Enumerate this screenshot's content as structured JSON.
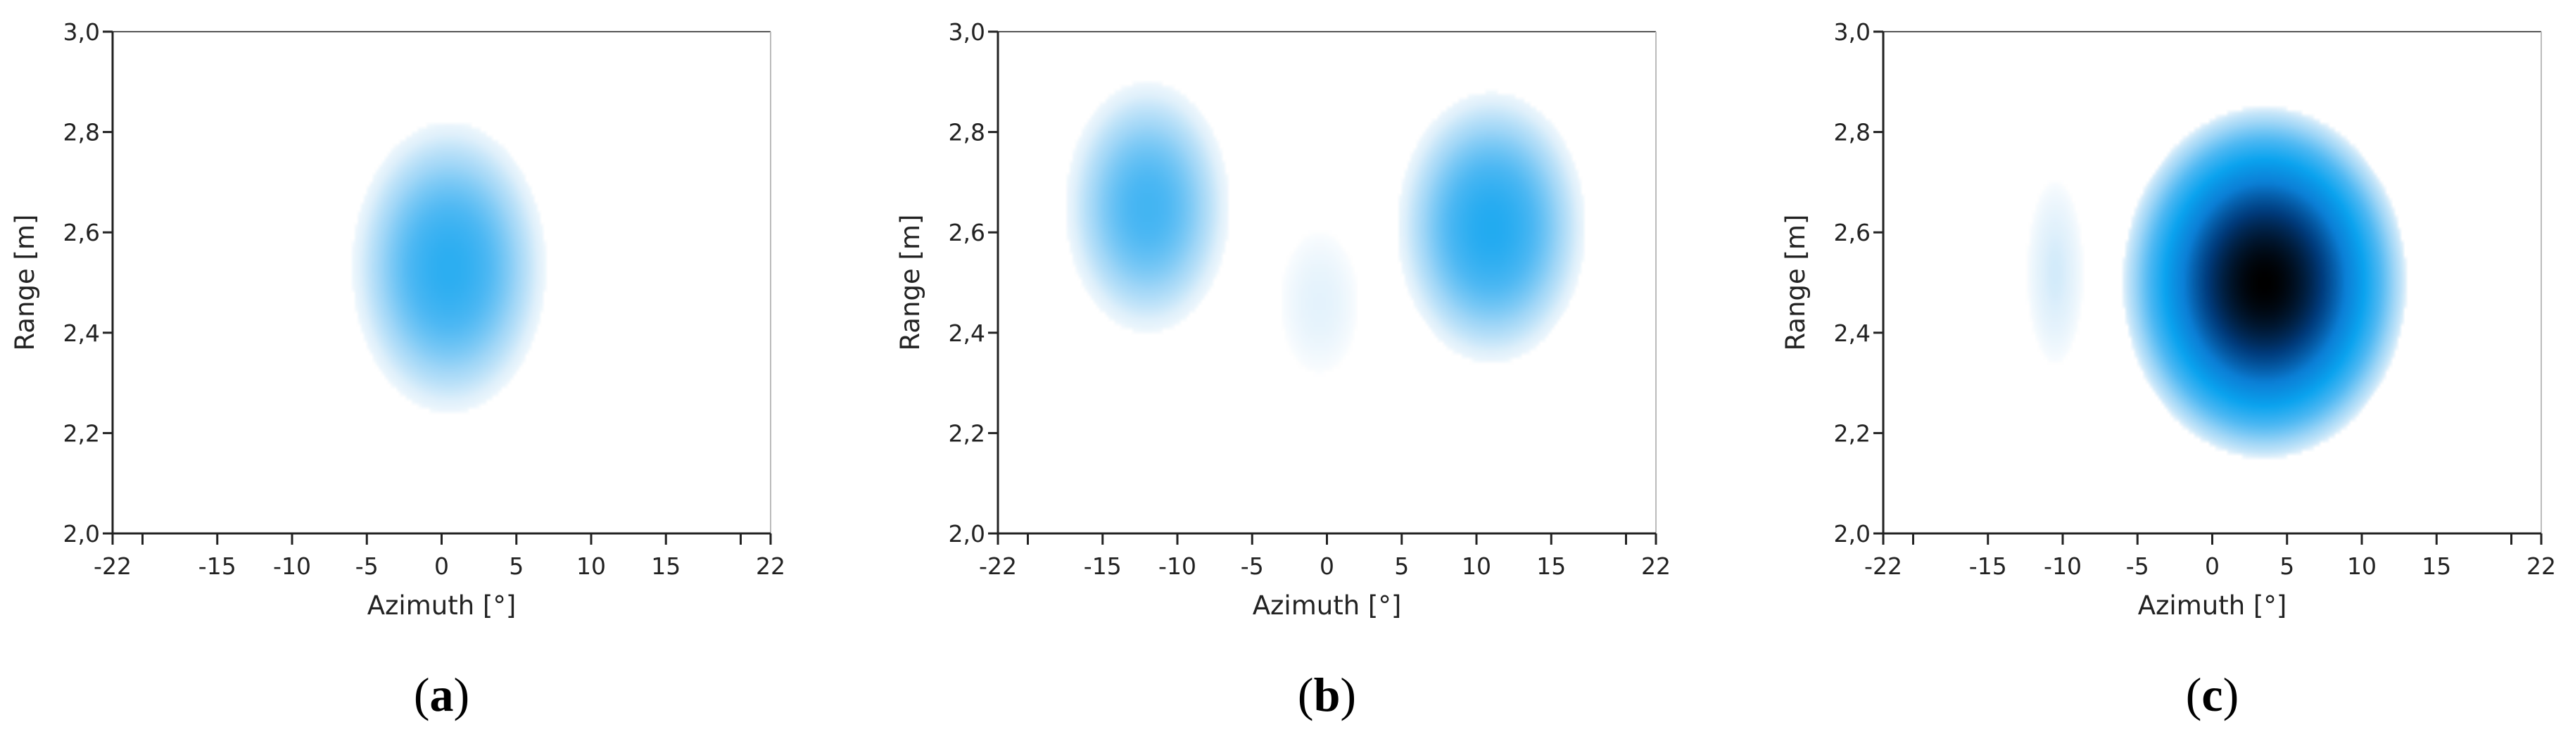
{
  "chart_data": [
    {
      "type": "heatmap",
      "caption": {
        "open": "(",
        "letter": "a",
        "close": ")"
      },
      "xlabel": "Azimuth [°]",
      "ylabel": "Range [m]",
      "xlim": [
        -22,
        22
      ],
      "ylim": [
        2.0,
        3.0
      ],
      "x_tick_labels": [
        {
          "value": -22,
          "label": "-22"
        },
        {
          "value": -15,
          "label": "-15"
        },
        {
          "value": -10,
          "label": "-10"
        },
        {
          "value": -5,
          "label": "-5"
        },
        {
          "value": 0,
          "label": "0"
        },
        {
          "value": 5,
          "label": "5"
        },
        {
          "value": 10,
          "label": "10"
        },
        {
          "value": 15,
          "label": "15"
        },
        {
          "value": 22,
          "label": "22"
        }
      ],
      "x_minor_ticks": [
        -20,
        20
      ],
      "y_tick_labels": [
        {
          "value": 2.0,
          "label": "2,0"
        },
        {
          "value": 2.2,
          "label": "2,2"
        },
        {
          "value": 2.4,
          "label": "2,4"
        },
        {
          "value": 2.6,
          "label": "2,6"
        },
        {
          "value": 2.8,
          "label": "2,8"
        },
        {
          "value": 3.0,
          "label": "3,0"
        }
      ],
      "colormap": [
        "#ffffff",
        "#dff0fb",
        "#9fd6f7",
        "#4db8f3",
        "#0aa3ef",
        "#0b7fd6",
        "#003a7a",
        "#000000"
      ],
      "grid": false,
      "blobs": [
        {
          "azimuth": 0.5,
          "range": 2.53,
          "azimuth_halfwidth": 6.5,
          "range_halfwidth": 0.29,
          "intensity": 0.5
        }
      ]
    },
    {
      "type": "heatmap",
      "caption": {
        "open": "(",
        "letter": "b",
        "close": ")"
      },
      "xlabel": "Azimuth [°]",
      "ylabel": "Range [m]",
      "xlim": [
        -22,
        22
      ],
      "ylim": [
        2.0,
        3.0
      ],
      "x_tick_labels": [
        {
          "value": -22,
          "label": "-22"
        },
        {
          "value": -15,
          "label": "-15"
        },
        {
          "value": -10,
          "label": "-10"
        },
        {
          "value": -5,
          "label": "-5"
        },
        {
          "value": 0,
          "label": "0"
        },
        {
          "value": 5,
          "label": "5"
        },
        {
          "value": 10,
          "label": "10"
        },
        {
          "value": 15,
          "label": "15"
        },
        {
          "value": 22,
          "label": "22"
        }
      ],
      "x_minor_ticks": [
        -20,
        20
      ],
      "y_tick_labels": [
        {
          "value": 2.0,
          "label": "2,0"
        },
        {
          "value": 2.2,
          "label": "2,2"
        },
        {
          "value": 2.4,
          "label": "2,4"
        },
        {
          "value": 2.6,
          "label": "2,6"
        },
        {
          "value": 2.8,
          "label": "2,8"
        },
        {
          "value": 3.0,
          "label": "3,0"
        }
      ],
      "colormap": [
        "#ffffff",
        "#dff0fb",
        "#9fd6f7",
        "#4db8f3",
        "#0aa3ef",
        "#0b7fd6",
        "#003a7a",
        "#000000"
      ],
      "grid": false,
      "blobs": [
        {
          "azimuth": -12,
          "range": 2.65,
          "azimuth_halfwidth": 5.5,
          "range_halfwidth": 0.25,
          "intensity": 0.45
        },
        {
          "azimuth": -0.5,
          "range": 2.46,
          "azimuth_halfwidth": 2.6,
          "range_halfwidth": 0.14,
          "intensity": 0.12
        },
        {
          "azimuth": 11,
          "range": 2.61,
          "azimuth_halfwidth": 6.3,
          "range_halfwidth": 0.27,
          "intensity": 0.52
        }
      ]
    },
    {
      "type": "heatmap",
      "caption": {
        "open": "(",
        "letter": "c",
        "close": ")"
      },
      "xlabel": "Azimuth [°]",
      "ylabel": "Range [m]",
      "xlim": [
        -22,
        22
      ],
      "ylim": [
        2.0,
        3.0
      ],
      "x_tick_labels": [
        {
          "value": -22,
          "label": "-22"
        },
        {
          "value": -15,
          "label": "-15"
        },
        {
          "value": -10,
          "label": "-10"
        },
        {
          "value": -5,
          "label": "-5"
        },
        {
          "value": 0,
          "label": "0"
        },
        {
          "value": 5,
          "label": "5"
        },
        {
          "value": 10,
          "label": "10"
        },
        {
          "value": 15,
          "label": "15"
        },
        {
          "value": 22,
          "label": "22"
        }
      ],
      "x_minor_ticks": [
        -20,
        20
      ],
      "y_tick_labels": [
        {
          "value": 2.0,
          "label": "2,0"
        },
        {
          "value": 2.2,
          "label": "2,2"
        },
        {
          "value": 2.4,
          "label": "2,4"
        },
        {
          "value": 2.6,
          "label": "2,6"
        },
        {
          "value": 2.8,
          "label": "2,8"
        },
        {
          "value": 3.0,
          "label": "3,0"
        }
      ],
      "colormap": [
        "#ffffff",
        "#dff0fb",
        "#9fd6f7",
        "#4db8f3",
        "#0aa3ef",
        "#0b7fd6",
        "#003a7a",
        "#000000"
      ],
      "grid": false,
      "blobs": [
        {
          "azimuth": -10.5,
          "range": 2.52,
          "azimuth_halfwidth": 1.9,
          "range_halfwidth": 0.18,
          "intensity": 0.17
        },
        {
          "azimuth": 3.5,
          "range": 2.5,
          "azimuth_halfwidth": 9.5,
          "range_halfwidth": 0.35,
          "intensity": 1.0
        }
      ]
    }
  ]
}
